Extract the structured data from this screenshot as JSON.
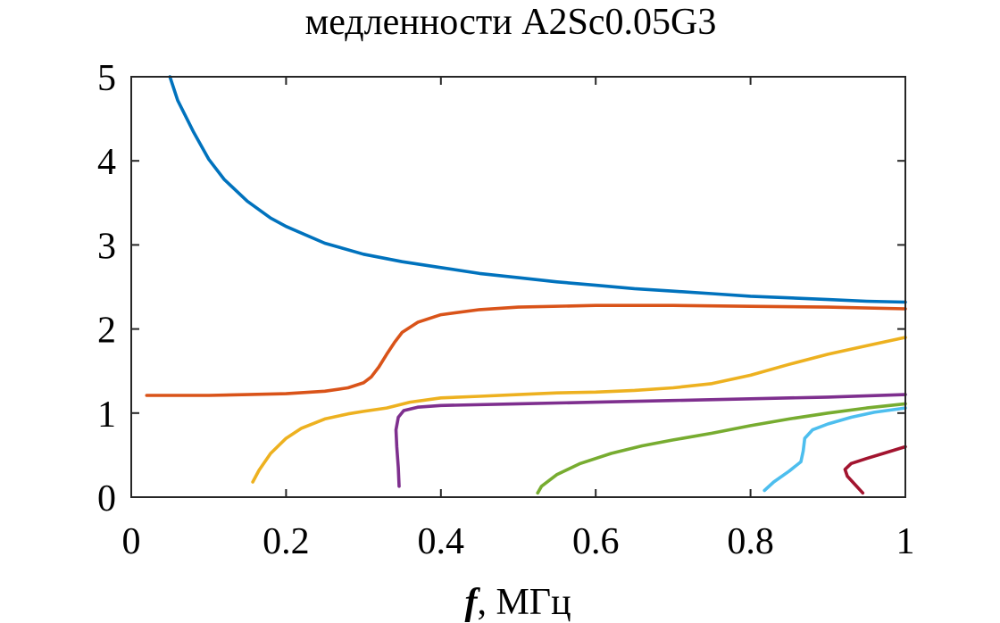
{
  "chart_data": {
    "type": "line",
    "title": "медленности A2Sc0.05G3",
    "xlabel_var": "f",
    "xlabel_unit": ", МГц",
    "ylabel": "",
    "xlim": [
      0,
      1
    ],
    "ylim": [
      0,
      5
    ],
    "xticks": [
      0,
      0.2,
      0.4,
      0.6,
      0.8,
      1
    ],
    "xtick_labels": [
      "0",
      "0.2",
      "0.4",
      "0.6",
      "0.8",
      "1"
    ],
    "yticks": [
      0,
      1,
      2,
      3,
      4,
      5
    ],
    "ytick_labels": [
      "0",
      "1",
      "2",
      "3",
      "4",
      "5"
    ],
    "grid": false,
    "box": true,
    "series": [
      {
        "color": "#0072BD",
        "points": [
          [
            0.05,
            5.0
          ],
          [
            0.06,
            4.72
          ],
          [
            0.08,
            4.35
          ],
          [
            0.1,
            4.02
          ],
          [
            0.12,
            3.78
          ],
          [
            0.15,
            3.52
          ],
          [
            0.18,
            3.32
          ],
          [
            0.2,
            3.22
          ],
          [
            0.25,
            3.02
          ],
          [
            0.3,
            2.89
          ],
          [
            0.35,
            2.8
          ],
          [
            0.4,
            2.73
          ],
          [
            0.45,
            2.66
          ],
          [
            0.5,
            2.61
          ],
          [
            0.55,
            2.56
          ],
          [
            0.6,
            2.52
          ],
          [
            0.65,
            2.48
          ],
          [
            0.7,
            2.45
          ],
          [
            0.75,
            2.42
          ],
          [
            0.8,
            2.39
          ],
          [
            0.85,
            2.37
          ],
          [
            0.9,
            2.35
          ],
          [
            0.95,
            2.33
          ],
          [
            1.0,
            2.32
          ]
        ]
      },
      {
        "color": "#D95319",
        "points": [
          [
            0.02,
            1.21
          ],
          [
            0.05,
            1.21
          ],
          [
            0.1,
            1.21
          ],
          [
            0.15,
            1.22
          ],
          [
            0.2,
            1.23
          ],
          [
            0.25,
            1.26
          ],
          [
            0.28,
            1.3
          ],
          [
            0.3,
            1.36
          ],
          [
            0.31,
            1.43
          ],
          [
            0.32,
            1.55
          ],
          [
            0.33,
            1.7
          ],
          [
            0.34,
            1.84
          ],
          [
            0.35,
            1.96
          ],
          [
            0.37,
            2.08
          ],
          [
            0.4,
            2.17
          ],
          [
            0.45,
            2.23
          ],
          [
            0.5,
            2.26
          ],
          [
            0.6,
            2.28
          ],
          [
            0.7,
            2.28
          ],
          [
            0.8,
            2.27
          ],
          [
            0.9,
            2.26
          ],
          [
            1.0,
            2.24
          ]
        ]
      },
      {
        "color": "#EDB120",
        "points": [
          [
            0.157,
            0.18
          ],
          [
            0.165,
            0.32
          ],
          [
            0.18,
            0.52
          ],
          [
            0.2,
            0.7
          ],
          [
            0.22,
            0.82
          ],
          [
            0.25,
            0.93
          ],
          [
            0.28,
            0.99
          ],
          [
            0.3,
            1.02
          ],
          [
            0.33,
            1.06
          ],
          [
            0.36,
            1.13
          ],
          [
            0.4,
            1.18
          ],
          [
            0.45,
            1.2
          ],
          [
            0.5,
            1.22
          ],
          [
            0.55,
            1.24
          ],
          [
            0.6,
            1.25
          ],
          [
            0.65,
            1.27
          ],
          [
            0.7,
            1.3
          ],
          [
            0.75,
            1.35
          ],
          [
            0.8,
            1.45
          ],
          [
            0.85,
            1.58
          ],
          [
            0.9,
            1.7
          ],
          [
            0.95,
            1.8
          ],
          [
            1.0,
            1.9
          ]
        ]
      },
      {
        "color": "#7E2F8E",
        "points": [
          [
            0.346,
            0.13
          ],
          [
            0.345,
            0.35
          ],
          [
            0.343,
            0.6
          ],
          [
            0.342,
            0.8
          ],
          [
            0.345,
            0.95
          ],
          [
            0.352,
            1.03
          ],
          [
            0.37,
            1.07
          ],
          [
            0.4,
            1.09
          ],
          [
            0.5,
            1.11
          ],
          [
            0.6,
            1.13
          ],
          [
            0.7,
            1.15
          ],
          [
            0.8,
            1.17
          ],
          [
            0.9,
            1.19
          ],
          [
            1.0,
            1.22
          ]
        ]
      },
      {
        "color": "#77AC30",
        "points": [
          [
            0.525,
            0.05
          ],
          [
            0.53,
            0.13
          ],
          [
            0.55,
            0.27
          ],
          [
            0.58,
            0.4
          ],
          [
            0.62,
            0.52
          ],
          [
            0.66,
            0.61
          ],
          [
            0.7,
            0.68
          ],
          [
            0.75,
            0.76
          ],
          [
            0.8,
            0.85
          ],
          [
            0.85,
            0.93
          ],
          [
            0.9,
            1.0
          ],
          [
            0.95,
            1.06
          ],
          [
            1.0,
            1.11
          ]
        ]
      },
      {
        "color": "#4DBEEE",
        "points": [
          [
            0.818,
            0.08
          ],
          [
            0.83,
            0.18
          ],
          [
            0.85,
            0.31
          ],
          [
            0.865,
            0.42
          ],
          [
            0.868,
            0.55
          ],
          [
            0.87,
            0.7
          ],
          [
            0.88,
            0.8
          ],
          [
            0.9,
            0.87
          ],
          [
            0.93,
            0.95
          ],
          [
            0.96,
            1.01
          ],
          [
            1.0,
            1.06
          ]
        ]
      },
      {
        "color": "#A2142F",
        "points": [
          [
            0.945,
            0.05
          ],
          [
            0.935,
            0.15
          ],
          [
            0.925,
            0.25
          ],
          [
            0.922,
            0.33
          ],
          [
            0.93,
            0.4
          ],
          [
            0.95,
            0.46
          ],
          [
            0.975,
            0.53
          ],
          [
            1.0,
            0.6
          ]
        ]
      }
    ]
  }
}
